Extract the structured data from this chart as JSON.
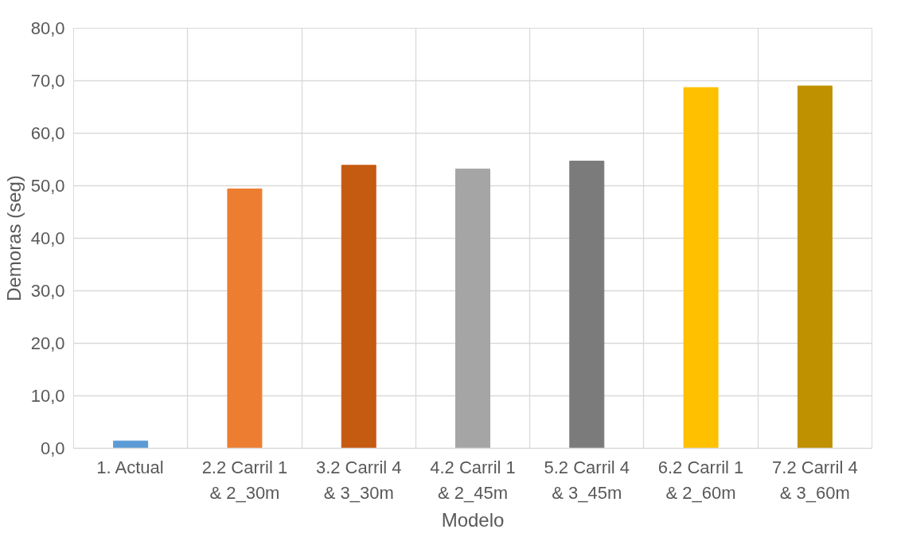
{
  "chart_data": {
    "type": "bar",
    "xlabel": "Modelo",
    "ylabel": "Demoras (seg)",
    "categories": [
      "1. Actual",
      "2.2 Carril 1\n& 2_30m",
      "3.2 Carril 4\n& 3_30m",
      "4.2 Carril 1\n& 2_45m",
      "5.2 Carril 4\n& 3_45m",
      "6.2 Carril 1\n& 2_60m",
      "7.2 Carril 4\n& 3_60m"
    ],
    "values": [
      1.4,
      49.4,
      53.9,
      53.2,
      54.7,
      68.7,
      69.0
    ],
    "colors": [
      "#5b9bd5",
      "#ed7d31",
      "#c55a11",
      "#a5a5a5",
      "#7b7b7b",
      "#ffc000",
      "#bf9000"
    ],
    "ylim": [
      0,
      80
    ],
    "yticks": [
      {
        "value": 0,
        "label": "0,0"
      },
      {
        "value": 10,
        "label": "10,0"
      },
      {
        "value": 20,
        "label": "20,0"
      },
      {
        "value": 30,
        "label": "30,0"
      },
      {
        "value": 40,
        "label": "40,0"
      },
      {
        "value": 50,
        "label": "50,0"
      },
      {
        "value": 60,
        "label": "60,0"
      },
      {
        "value": 70,
        "label": "70,0"
      },
      {
        "value": 80,
        "label": "80,0"
      }
    ],
    "grid": true
  }
}
